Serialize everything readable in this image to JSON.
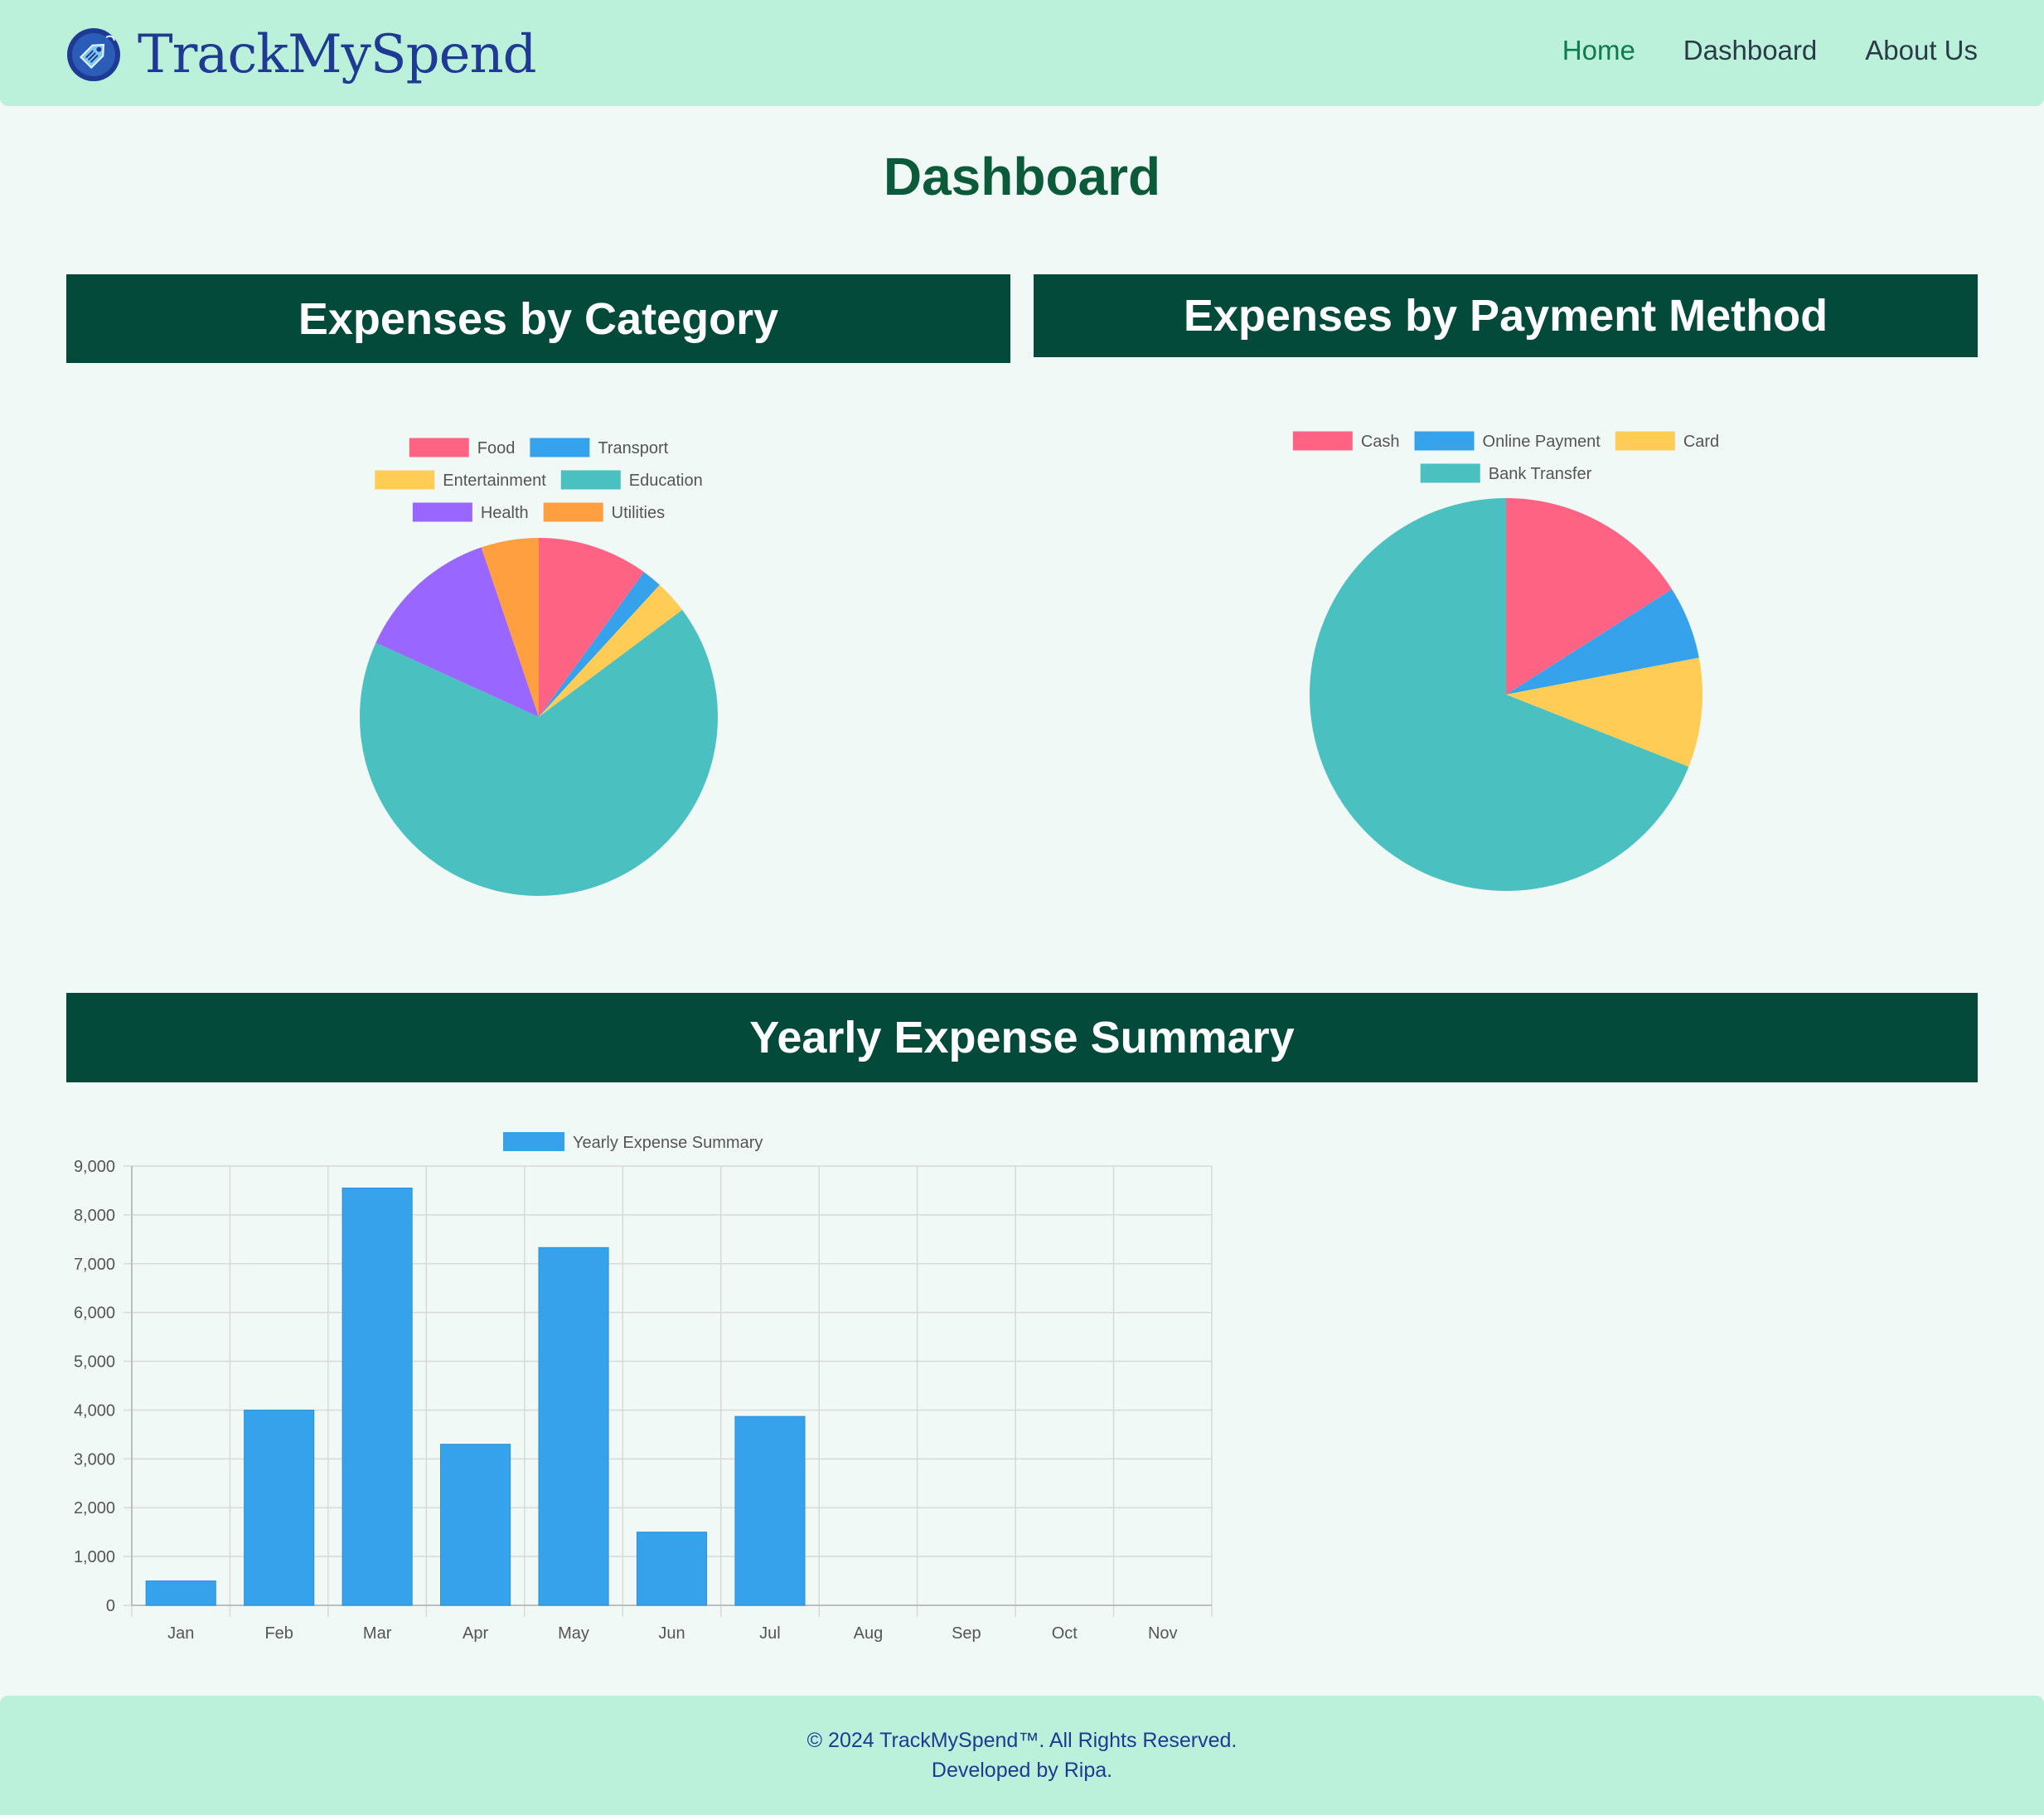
{
  "header": {
    "brand_name": "TrackMySpend",
    "nav": [
      {
        "label": "Home",
        "active": true
      },
      {
        "label": "Dashboard",
        "active": false
      },
      {
        "label": "About Us",
        "active": false
      }
    ]
  },
  "page_title": "Dashboard",
  "sections": {
    "category_title": "Expenses by Category",
    "payment_title": "Expenses by Payment Method",
    "yearly_title": "Yearly Expense Summary"
  },
  "colors": {
    "header_bg": "#bbf0da",
    "section_bar": "#044a3a",
    "title_green": "#0b5a3a",
    "brand_blue": "#1f3a93"
  },
  "chart_data": [
    {
      "type": "pie",
      "title": "Expenses by Category",
      "legend_position": "top",
      "labels": [
        "Food",
        "Transport",
        "Entertainment",
        "Education",
        "Health",
        "Utilities"
      ],
      "values": [
        10,
        1.8,
        3,
        67,
        13,
        5.2
      ],
      "colors": [
        "#ff6384",
        "#36a2eb",
        "#ffcd56",
        "#4bc0c0",
        "#9966ff",
        "#ff9f40"
      ]
    },
    {
      "type": "pie",
      "title": "Expenses by Payment Method",
      "legend_position": "top",
      "labels": [
        "Cash",
        "Online Payment",
        "Card",
        "Bank Transfer"
      ],
      "values": [
        16,
        6,
        9,
        69
      ],
      "colors": [
        "#ff6384",
        "#36a2eb",
        "#ffcd56",
        "#4bc0c0"
      ]
    },
    {
      "type": "bar",
      "title": "Yearly Expense Summary",
      "series": [
        {
          "name": "Yearly Expense Summary",
          "values": [
            500,
            4000,
            8550,
            3300,
            7330,
            1500,
            3870,
            0,
            0,
            0,
            0
          ],
          "color": "#36a2eb"
        }
      ],
      "categories": [
        "Jan",
        "Feb",
        "Mar",
        "Apr",
        "May",
        "Jun",
        "Jul",
        "Aug",
        "Sep",
        "Oct",
        "Nov"
      ],
      "ylim": [
        0,
        9000
      ],
      "yticks": [
        "0",
        "1,000",
        "2,000",
        "3,000",
        "4,000",
        "5,000",
        "6,000",
        "7,000",
        "8,000",
        "9,000"
      ],
      "grid": true,
      "legend_position": "top"
    }
  ],
  "footer": {
    "copyright": "© 2024 TrackMySpend™. All Rights Reserved.",
    "developer": "Developed by Ripa."
  }
}
